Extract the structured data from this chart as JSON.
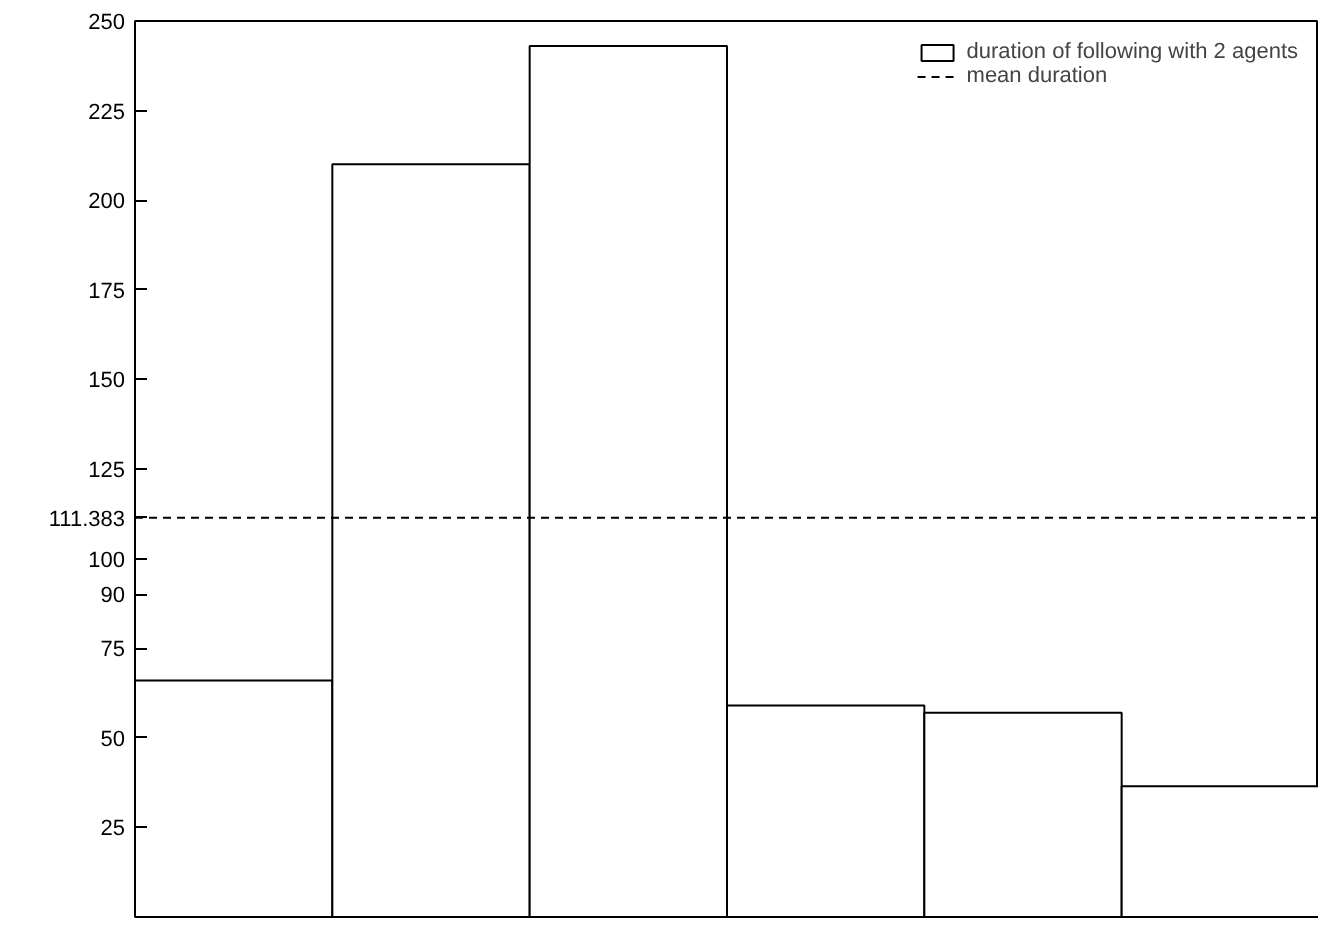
{
  "chart_data": {
    "type": "bar",
    "categories": [
      null,
      null,
      null,
      null,
      null,
      null
    ],
    "series": [
      {
        "name": "duration of following with 2 agents",
        "color": "#000000",
        "values": [
          66,
          210,
          243,
          59,
          57,
          36.5
        ]
      }
    ],
    "ylim": [
      0,
      250
    ],
    "yticks": [
      25,
      50,
      75,
      90,
      100,
      111.383,
      125,
      150,
      175,
      200,
      225,
      250
    ],
    "ref_lines": [
      {
        "axis": "y",
        "value": 111.383,
        "label": "mean duration",
        "color": "#000000",
        "line_style": "dashed"
      }
    ],
    "grid": false,
    "legend": "top right",
    "tick_labels": "y"
  }
}
